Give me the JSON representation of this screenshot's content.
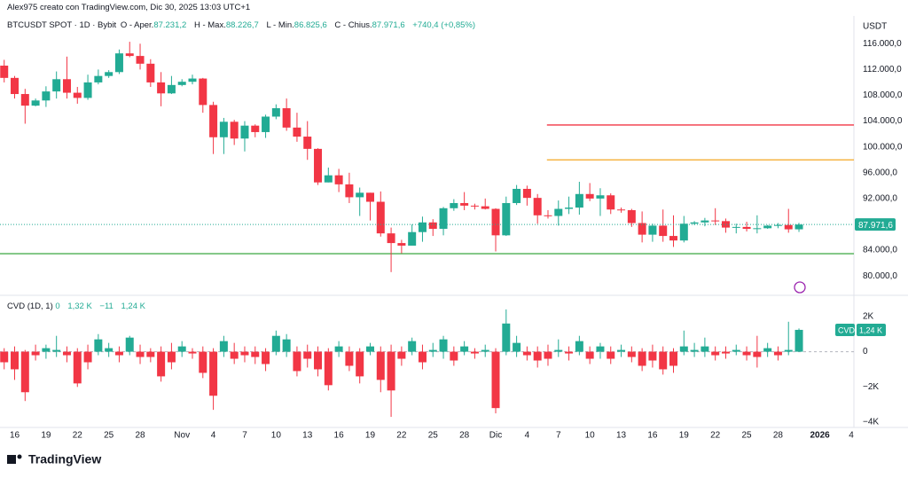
{
  "attribution": "Alex975 creato con TradingView.com, Dic 30, 2025 13:03 UTC+1",
  "logo": "TradingView",
  "chart_data": [
    {
      "type": "candlestick",
      "header": {
        "symbol": "BTCUSDT SPOT · 1D · Bybit",
        "o_label": "O - Aper.",
        "o": "87.231,2",
        "h_label": "H - Max.",
        "h": "88.226,7",
        "l_label": "L - Min.",
        "l": "86.825,6",
        "c_label": "C - Chius.",
        "c": "87.971,6",
        "change": "+740,4 (+0,85%)"
      },
      "axis_unit": "USDT",
      "up_color": "#22ab94",
      "down_color": "#f23645",
      "open": [
        112600,
        110700,
        108200,
        106400,
        107200,
        108600,
        110500,
        108400,
        107600,
        110000,
        111000,
        111600,
        114500,
        114100,
        112900,
        110000,
        108300,
        109600,
        110100,
        110600,
        106500,
        101500,
        103900,
        101300,
        103300,
        102300,
        104700,
        106000,
        103000,
        101600,
        99700,
        94500,
        95600,
        94200,
        92200,
        92900,
        91500,
        86600,
        85100,
        84700,
        86800,
        88300,
        87300,
        90500,
        91300,
        90900,
        90800,
        90400,
        86300,
        91300,
        93500,
        92100,
        89400,
        89300,
        90400,
        90600,
        92700,
        92000,
        92500,
        90300,
        90200,
        88200,
        86400,
        87800,
        86200,
        85500,
        88100,
        88300,
        88600,
        88500,
        87500,
        87600,
        87300,
        87400,
        87800,
        87900,
        87231.2
      ],
      "high": [
        113500,
        111000,
        109000,
        107500,
        109400,
        111700,
        114000,
        109300,
        111200,
        112000,
        111900,
        115100,
        116300,
        116000,
        113600,
        111600,
        111000,
        110500,
        111200,
        110700,
        107000,
        104500,
        104200,
        104000,
        103500,
        105000,
        106600,
        107500,
        105300,
        104000,
        99800,
        96800,
        96600,
        96000,
        93700,
        92900,
        93100,
        87500,
        85600,
        88000,
        89200,
        88800,
        90700,
        91900,
        93000,
        91200,
        92000,
        90500,
        92300,
        94100,
        94000,
        92700,
        90200,
        91700,
        92300,
        94600,
        94400,
        93600,
        92800,
        90600,
        90400,
        90000,
        88100,
        90300,
        89400,
        89300,
        88500,
        89000,
        90500,
        88900,
        88100,
        88400,
        89400,
        87900,
        88200,
        90400,
        88226.7
      ],
      "low": [
        110000,
        107500,
        103600,
        106300,
        106200,
        107500,
        107500,
        106700,
        107300,
        109700,
        110700,
        111300,
        113900,
        112000,
        109300,
        106300,
        108200,
        109400,
        109700,
        105300,
        98900,
        98900,
        100300,
        99300,
        101500,
        101400,
        104300,
        102500,
        100800,
        98000,
        94100,
        94500,
        93000,
        91300,
        89300,
        88600,
        86100,
        80600,
        83500,
        84700,
        85300,
        86200,
        86300,
        90100,
        90200,
        90300,
        90300,
        83800,
        86200,
        91000,
        90900,
        88100,
        88900,
        87800,
        89600,
        89500,
        91600,
        89300,
        89600,
        89800,
        87600,
        85200,
        85300,
        85300,
        84500,
        85200,
        87900,
        87700,
        87900,
        86700,
        86600,
        86900,
        86600,
        87300,
        87400,
        86700,
        86825.6
      ],
      "close": [
        110700,
        108200,
        106400,
        107200,
        108600,
        110500,
        108400,
        107600,
        110000,
        111000,
        111600,
        114500,
        114100,
        112900,
        110000,
        108300,
        109600,
        110100,
        110600,
        106500,
        101500,
        103900,
        101300,
        103300,
        102300,
        104700,
        106000,
        103000,
        101600,
        99700,
        94500,
        95600,
        94200,
        92200,
        92900,
        91500,
        86600,
        85100,
        84700,
        86800,
        88300,
        87300,
        90500,
        91300,
        90900,
        90800,
        90400,
        86300,
        91300,
        93500,
        92100,
        89400,
        89300,
        90400,
        90600,
        92700,
        92000,
        92500,
        90300,
        90200,
        88200,
        86400,
        87800,
        86200,
        85500,
        88100,
        88300,
        88600,
        88500,
        87500,
        87600,
        87300,
        87400,
        87800,
        87900,
        87231.2,
        87971.6
      ],
      "last_price_label": "87.971,6",
      "xlim": [
        -0.4,
        81
      ],
      "xticks": [
        {
          "value": 1,
          "label": "16"
        },
        {
          "value": 4,
          "label": "19"
        },
        {
          "value": 7,
          "label": "22"
        },
        {
          "value": 10,
          "label": "25"
        },
        {
          "value": 13,
          "label": "28"
        },
        {
          "value": 17,
          "label": "Nov"
        },
        {
          "value": 20,
          "label": "4"
        },
        {
          "value": 23,
          "label": "7"
        },
        {
          "value": 26,
          "label": "10"
        },
        {
          "value": 29,
          "label": "13"
        },
        {
          "value": 32,
          "label": "16"
        },
        {
          "value": 35,
          "label": "19"
        },
        {
          "value": 38,
          "label": "22"
        },
        {
          "value": 41,
          "label": "25"
        },
        {
          "value": 44,
          "label": "28"
        },
        {
          "value": 47,
          "label": "Dic"
        },
        {
          "value": 50,
          "label": "4"
        },
        {
          "value": 53,
          "label": "7"
        },
        {
          "value": 56,
          "label": "10"
        },
        {
          "value": 59,
          "label": "13"
        },
        {
          "value": 62,
          "label": "16"
        },
        {
          "value": 65,
          "label": "19"
        },
        {
          "value": 68,
          "label": "22"
        },
        {
          "value": 71,
          "label": "25"
        },
        {
          "value": 74,
          "label": "28"
        },
        {
          "value": 78,
          "label": "2026"
        },
        {
          "value": 81,
          "label": "4"
        }
      ],
      "ylim": [
        77000,
        120300
      ],
      "yticks": [
        {
          "value": 116000,
          "label": "116.000,0"
        },
        {
          "value": 112000,
          "label": "112.000,0"
        },
        {
          "value": 108000,
          "label": "108.000,0"
        },
        {
          "value": 104000,
          "label": "104.000,0"
        },
        {
          "value": 100000,
          "label": "100.000,0"
        },
        {
          "value": 96000,
          "label": "96.000,0"
        },
        {
          "value": 92000,
          "label": "92.000,0"
        },
        {
          "value": 84000,
          "label": "84.000,0"
        },
        {
          "value": 80000,
          "label": "80.000,0"
        }
      ],
      "levels": [
        {
          "value": 103400,
          "color": "#f23645",
          "x_start": 51.9
        },
        {
          "value": 98000,
          "color": "#f5a623",
          "x_start": 51.9
        },
        {
          "value": 83450,
          "color": "#4caf50",
          "x_start": -0.4
        }
      ]
    },
    {
      "type": "cvd",
      "legend": {
        "name": "CVD (1D, 1)",
        "o": "0",
        "h": "1,32 K",
        "l": "−11",
        "c": "1,24 K"
      },
      "tag": "CVD",
      "last_label": "1,24 K",
      "close": [
        -0.6,
        -1.0,
        -2.3,
        -0.2,
        0.2,
        0.1,
        -0.2,
        -1.8,
        -0.6,
        0.7,
        0.2,
        -0.2,
        0.8,
        -0.3,
        -0.3,
        -1.4,
        -0.6,
        0.3,
        -0.1,
        -1.2,
        -2.5,
        0.6,
        -0.4,
        -0.2,
        -0.3,
        -0.7,
        0.9,
        0.7,
        -1.1,
        -0.4,
        -1.0,
        -1.9,
        0.3,
        -0.8,
        -1.4,
        0.3,
        -1.6,
        -2.2,
        -0.4,
        0.6,
        -0.6,
        0.1,
        0.7,
        -0.5,
        0.3,
        -0.1,
        0.1,
        -3.2,
        1.6,
        0.5,
        -0.2,
        -0.5,
        -0.4,
        0.1,
        -0.1,
        0.6,
        -0.4,
        0.3,
        -0.4,
        0.1,
        -0.3,
        -0.8,
        -0.5,
        -1.0,
        -0.8,
        0.3,
        0.1,
        0.3,
        -0.2,
        -0.1,
        0.1,
        -0.2,
        -0.3,
        0.2,
        -0.2,
        0.1,
        1.24
      ],
      "high": [
        0.2,
        0.3,
        0.1,
        0.4,
        0.4,
        0.9,
        0.3,
        0.2,
        0.4,
        1.0,
        0.5,
        0.3,
        0.9,
        0.4,
        0.2,
        0.3,
        0.5,
        0.6,
        0.2,
        0.3,
        0.2,
        0.9,
        0.5,
        0.3,
        0.3,
        0.2,
        1.2,
        1.0,
        0.3,
        0.4,
        0.3,
        0.2,
        0.6,
        0.3,
        0.2,
        0.5,
        0.3,
        0.4,
        0.3,
        0.8,
        0.4,
        0.5,
        0.9,
        0.3,
        0.6,
        0.2,
        0.4,
        0.2,
        2.4,
        0.9,
        0.3,
        0.3,
        0.4,
        0.7,
        0.3,
        0.9,
        0.3,
        0.5,
        0.3,
        0.4,
        0.3,
        0.2,
        0.4,
        0.3,
        0.2,
        1.2,
        0.5,
        0.8,
        0.3,
        0.3,
        0.4,
        0.3,
        0.9,
        0.5,
        0.3,
        1.7,
        1.32
      ],
      "low": [
        -1.0,
        -1.6,
        -2.8,
        -0.5,
        -0.4,
        -0.3,
        -0.6,
        -2.0,
        -1.0,
        -0.2,
        -0.3,
        -0.6,
        -0.2,
        -0.7,
        -0.6,
        -1.7,
        -1.0,
        -0.3,
        -0.4,
        -1.5,
        -3.3,
        -0.3,
        -0.7,
        -0.6,
        -0.7,
        -1.1,
        -0.2,
        -0.3,
        -1.4,
        -0.9,
        -1.4,
        -2.2,
        -0.3,
        -1.1,
        -1.8,
        -0.2,
        -2.3,
        -3.7,
        -0.8,
        -0.2,
        -1.0,
        -0.3,
        -0.4,
        -0.8,
        -0.2,
        -0.4,
        -0.3,
        -3.5,
        -0.2,
        -0.3,
        -0.5,
        -0.9,
        -0.8,
        -0.3,
        -0.5,
        -0.2,
        -0.7,
        -0.4,
        -0.7,
        -0.3,
        -0.6,
        -1.1,
        -0.9,
        -1.3,
        -1.2,
        -0.2,
        -0.3,
        -0.3,
        -0.5,
        -0.4,
        -0.2,
        -0.5,
        -0.9,
        -0.3,
        -0.5,
        -0.2,
        -0.011
      ],
      "ylim": [
        -4.3,
        3.1
      ],
      "yticks": [
        {
          "value": 2,
          "label": "2K"
        },
        {
          "value": 0,
          "label": "0"
        },
        {
          "value": -2,
          "label": "−2K"
        },
        {
          "value": -4,
          "label": "−4K"
        }
      ]
    }
  ]
}
